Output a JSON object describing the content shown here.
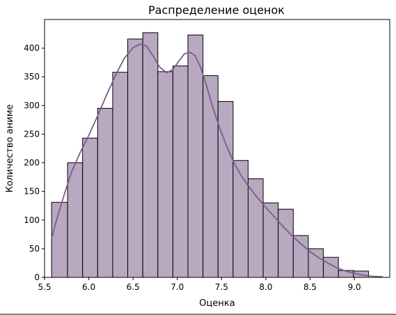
{
  "chart_data": {
    "type": "bar",
    "title": "Распределение оценок",
    "xlabel": "Оценка",
    "ylabel": "Количество аниме",
    "xlim": [
      5.5,
      9.4
    ],
    "ylim": [
      0,
      450
    ],
    "x_ticks": [
      "5.5",
      "6.0",
      "6.5",
      "7.0",
      "7.5",
      "8.0",
      "8.5",
      "9.0"
    ],
    "y_ticks": [
      "0",
      "50",
      "100",
      "150",
      "200",
      "250",
      "300",
      "350",
      "400"
    ],
    "bar_color": "#b8a8c0",
    "edge_color": "#000000",
    "kde_color": "#7b5c8c",
    "bins": [
      {
        "x0": 5.58,
        "x1": 5.76,
        "count": 131
      },
      {
        "x0": 5.76,
        "x1": 5.93,
        "count": 200
      },
      {
        "x0": 5.93,
        "x1": 6.1,
        "count": 243
      },
      {
        "x0": 6.1,
        "x1": 6.27,
        "count": 295
      },
      {
        "x0": 6.27,
        "x1": 6.44,
        "count": 358
      },
      {
        "x0": 6.44,
        "x1": 6.61,
        "count": 416
      },
      {
        "x0": 6.61,
        "x1": 6.78,
        "count": 427
      },
      {
        "x0": 6.78,
        "x1": 6.95,
        "count": 359
      },
      {
        "x0": 6.95,
        "x1": 7.12,
        "count": 369
      },
      {
        "x0": 7.12,
        "x1": 7.29,
        "count": 423
      },
      {
        "x0": 7.29,
        "x1": 7.46,
        "count": 352
      },
      {
        "x0": 7.46,
        "x1": 7.63,
        "count": 307
      },
      {
        "x0": 7.63,
        "x1": 7.8,
        "count": 204
      },
      {
        "x0": 7.8,
        "x1": 7.97,
        "count": 172
      },
      {
        "x0": 7.97,
        "x1": 8.14,
        "count": 130
      },
      {
        "x0": 8.14,
        "x1": 8.31,
        "count": 119
      },
      {
        "x0": 8.31,
        "x1": 8.48,
        "count": 73
      },
      {
        "x0": 8.48,
        "x1": 8.65,
        "count": 50
      },
      {
        "x0": 8.65,
        "x1": 8.82,
        "count": 35
      },
      {
        "x0": 8.82,
        "x1": 8.99,
        "count": 12
      },
      {
        "x0": 8.99,
        "x1": 9.16,
        "count": 11
      }
    ],
    "kde": {
      "x": [
        5.58,
        5.65,
        5.72,
        5.8,
        5.9,
        6.0,
        6.1,
        6.2,
        6.3,
        6.4,
        6.5,
        6.58,
        6.65,
        6.72,
        6.8,
        6.88,
        6.95,
        7.02,
        7.08,
        7.14,
        7.2,
        7.26,
        7.32,
        7.4,
        7.48,
        7.56,
        7.64,
        7.72,
        7.8,
        7.9,
        8.0,
        8.1,
        8.2,
        8.3,
        8.4,
        8.5,
        8.6,
        8.7,
        8.8,
        8.9,
        9.0,
        9.1,
        9.2,
        9.32
      ],
      "y": [
        68,
        108,
        143,
        182,
        217,
        248,
        282,
        318,
        352,
        382,
        401,
        407,
        404,
        388,
        367,
        357,
        363,
        378,
        390,
        393,
        387,
        368,
        340,
        297,
        260,
        228,
        200,
        178,
        160,
        140,
        122,
        105,
        88,
        72,
        58,
        45,
        34,
        25,
        17,
        11,
        7,
        4,
        2,
        1
      ]
    }
  }
}
